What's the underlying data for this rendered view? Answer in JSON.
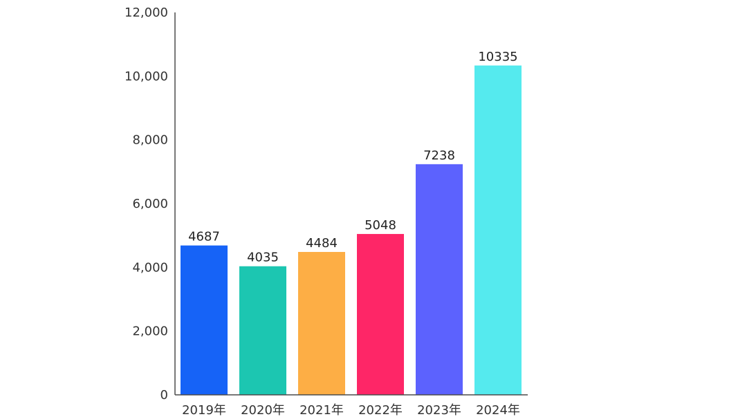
{
  "chart_data": {
    "type": "bar",
    "categories": [
      "2019年",
      "2020年",
      "2021年",
      "2022年",
      "2023年",
      "2024年"
    ],
    "values": [
      4687,
      4035,
      4484,
      5048,
      7238,
      10335
    ],
    "colors": [
      "#1663F7",
      "#1CC6B1",
      "#FDAE45",
      "#FE2667",
      "#5C62FE",
      "#55EAEE"
    ],
    "ylim": [
      0,
      12000
    ],
    "yticks": [
      0,
      2000,
      4000,
      6000,
      8000,
      10000,
      12000
    ],
    "ytick_labels": [
      "0",
      "2,000",
      "4,000",
      "6,000",
      "8,000",
      "10,000",
      "12,000"
    ],
    "data_labels": [
      "4687",
      "4035",
      "4484",
      "5048",
      "7238",
      "10335"
    ],
    "title": "",
    "xlabel": "",
    "ylabel": "",
    "grid": false,
    "legend": "none"
  }
}
